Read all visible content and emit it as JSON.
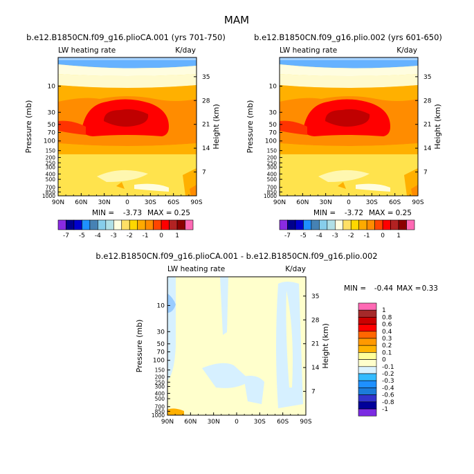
{
  "figure": {
    "title": "MAM"
  },
  "chart_data": [
    {
      "type": "heatmap",
      "title": "b.e12.B1850CN.f09_g16.plioCA.001 (yrs 701-750)",
      "left_label": "LW heating rate",
      "right_label": "K/day",
      "xlabel": "",
      "ylabel": "Pressure (mb)",
      "y2label": "Height (km)",
      "x_ticks": [
        "90N",
        "60N",
        "30N",
        "0",
        "30S",
        "60S",
        "90S"
      ],
      "y_ticks": [
        "10",
        "30",
        "50",
        "70",
        "100",
        "150",
        "200",
        "250",
        "300",
        "400",
        "500",
        "700",
        "850",
        "1000"
      ],
      "y2_ticks": [
        "35",
        "28",
        "21",
        "14",
        "7"
      ],
      "min_label": "MIN =",
      "min_value": "-3.73",
      "max_label": "MAX =",
      "max_value": "0.25",
      "colorbar_labels": [
        "-7",
        "-5",
        "-4",
        "-3",
        "-2",
        "-1",
        "0",
        "1"
      ]
    },
    {
      "type": "heatmap",
      "title": "b.e12.B1850CN.f09_g16.plio.002 (yrs 601-650)",
      "left_label": "LW heating rate",
      "right_label": "K/day",
      "xlabel": "",
      "ylabel": "Pressure (mb)",
      "y2label": "Height (km)",
      "x_ticks": [
        "90N",
        "60N",
        "30N",
        "0",
        "30S",
        "60S",
        "90S"
      ],
      "y_ticks": [
        "10",
        "30",
        "50",
        "70",
        "100",
        "150",
        "200",
        "250",
        "300",
        "400",
        "500",
        "700",
        "850",
        "1000"
      ],
      "y2_ticks": [
        "35",
        "28",
        "21",
        "14",
        "7"
      ],
      "min_label": "MIN =",
      "min_value": "-3.72",
      "max_label": "MAX =",
      "max_value": "0.25",
      "colorbar_labels": [
        "-7",
        "-5",
        "-4",
        "-3",
        "-2",
        "-1",
        "0",
        "1"
      ]
    },
    {
      "type": "heatmap",
      "title": "b.e12.B1850CN.f09_g16.plioCA.001 - b.e12.B1850CN.f09_g16.plio.002",
      "left_label": "LW heating rate",
      "right_label": "K/day",
      "xlabel": "",
      "ylabel": "Pressure (mb)",
      "y2label": "Height (km)",
      "x_ticks": [
        "90N",
        "60N",
        "30N",
        "0",
        "30S",
        "60S",
        "90S"
      ],
      "y_ticks": [
        "10",
        "30",
        "50",
        "70",
        "100",
        "150",
        "200",
        "250",
        "300",
        "400",
        "500",
        "700",
        "850",
        "1000"
      ],
      "y2_ticks": [
        "35",
        "28",
        "21",
        "14",
        "7"
      ],
      "min_label": "MIN =",
      "min_value": "-0.44",
      "max_label": "MAX =",
      "max_value": "0.33",
      "colorbar_labels": [
        "1",
        "0.8",
        "0.6",
        "0.4",
        "0.3",
        "0.2",
        "0.1",
        "0",
        "-0.1",
        "-0.2",
        "-0.3",
        "-0.4",
        "-0.6",
        "-0.8",
        "-1"
      ]
    }
  ],
  "colors": {
    "cb_abs": [
      "#8a2be2",
      "#00008b",
      "#0000cd",
      "#1e90ff",
      "#4682b4",
      "#87ceeb",
      "#b0e0e6",
      "#ffffe0",
      "#ffe066",
      "#ffd700",
      "#ffaa00",
      "#ff8c00",
      "#ff4500",
      "#ff0000",
      "#b22222",
      "#8b0000",
      "#ff69b4"
    ],
    "cb_diff": [
      "#ff69b4",
      "#a52a2a",
      "#cc0000",
      "#ff0000",
      "#ff6600",
      "#ff9900",
      "#ffb300",
      "#ffff99",
      "#ffffcc",
      "#d9f2ff",
      "#33bbff",
      "#1e90ff",
      "#1c7bd9",
      "#3333cc",
      "#000099",
      "#7b2be2"
    ],
    "panel": {
      "level1": "#fffacd",
      "level2": "#ffe34d",
      "level3": "#ffb000",
      "level4": "#ff8c00",
      "level5": "#ff3300",
      "level6": "#ff0000",
      "level7": "#c00000",
      "top": "#66b2ff",
      "top_dark": "#3399ff"
    },
    "diff": {
      "bg": "#ffffcc",
      "light_blue": "#d6f0ff",
      "blue": "#99ccff",
      "orange": "#ffb000"
    }
  }
}
